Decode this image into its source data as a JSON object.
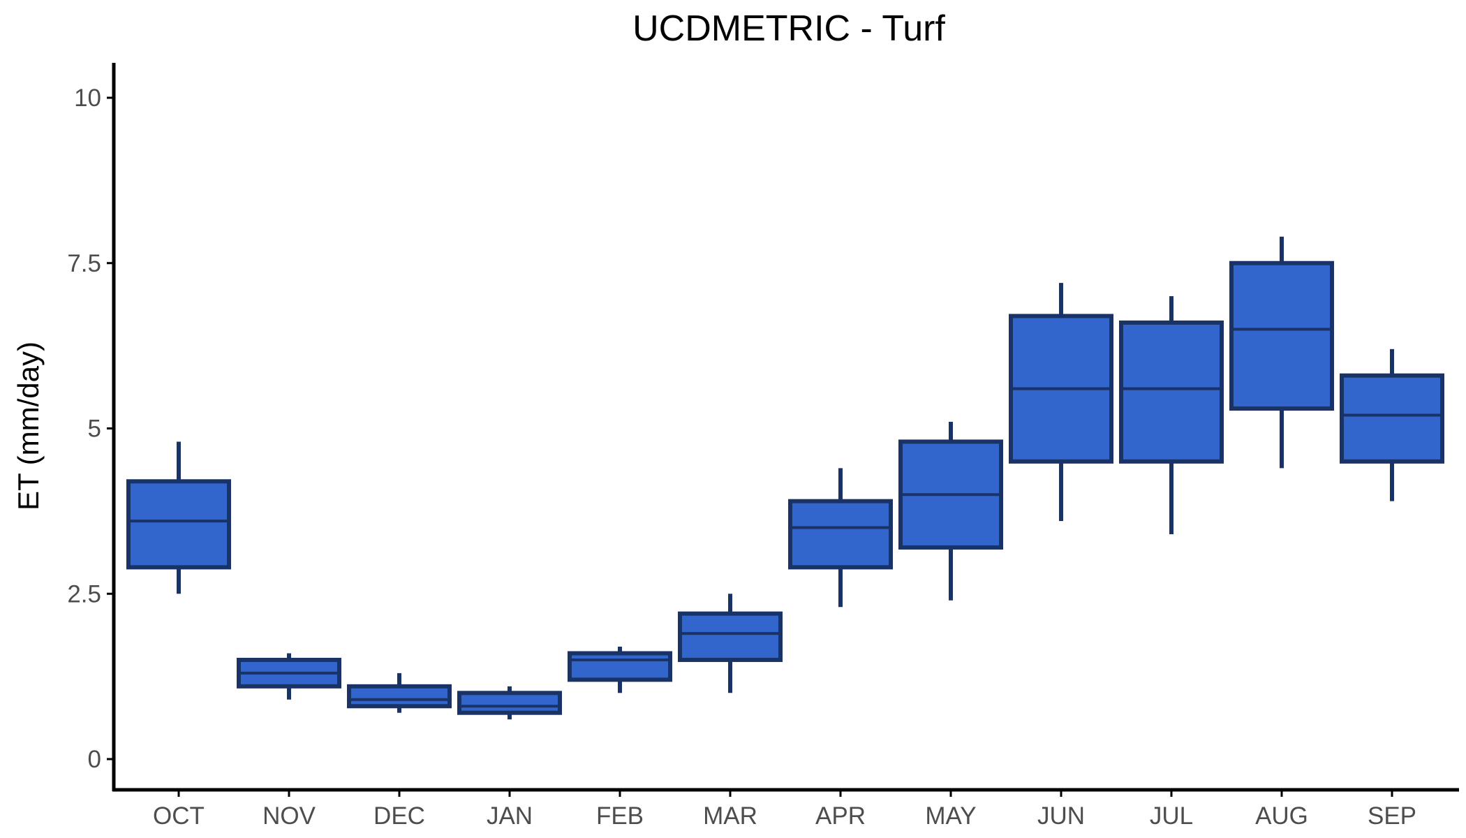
{
  "colors": {
    "box_fill": "#3366cc",
    "box_stroke": "#1a3366",
    "axis": "#000000",
    "tick_label": "#4d4d4d",
    "title": "#000000"
  },
  "chart_data": {
    "type": "box",
    "title": "UCDMETRIC - Turf",
    "xlabel": "",
    "ylabel": "ET (mm/day)",
    "ylim": [
      -0.5,
      10.5
    ],
    "yticks": [
      {
        "value": 0,
        "label": "0"
      },
      {
        "value": 2.5,
        "label": "2.5"
      },
      {
        "value": 5,
        "label": "5"
      },
      {
        "value": 7.5,
        "label": "7.5"
      },
      {
        "value": 10,
        "label": "10"
      }
    ],
    "categories": [
      "OCT",
      "NOV",
      "DEC",
      "JAN",
      "FEB",
      "MAR",
      "APR",
      "MAY",
      "JUN",
      "JUL",
      "AUG",
      "SEP"
    ],
    "boxes": [
      {
        "category": "OCT",
        "min": 2.5,
        "q1": 2.9,
        "median": 3.6,
        "q3": 4.2,
        "max": 4.8
      },
      {
        "category": "NOV",
        "min": 0.9,
        "q1": 1.1,
        "median": 1.3,
        "q3": 1.5,
        "max": 1.6
      },
      {
        "category": "DEC",
        "min": 0.7,
        "q1": 0.8,
        "median": 0.9,
        "q3": 1.1,
        "max": 1.3
      },
      {
        "category": "JAN",
        "min": 0.6,
        "q1": 0.7,
        "median": 0.8,
        "q3": 1.0,
        "max": 1.1
      },
      {
        "category": "FEB",
        "min": 1.0,
        "q1": 1.2,
        "median": 1.5,
        "q3": 1.6,
        "max": 1.7
      },
      {
        "category": "MAR",
        "min": 1.0,
        "q1": 1.5,
        "median": 1.9,
        "q3": 2.2,
        "max": 2.5
      },
      {
        "category": "APR",
        "min": 2.3,
        "q1": 2.9,
        "median": 3.5,
        "q3": 3.9,
        "max": 4.4
      },
      {
        "category": "MAY",
        "min": 2.4,
        "q1": 3.2,
        "median": 4.0,
        "q3": 4.8,
        "max": 5.1
      },
      {
        "category": "JUN",
        "min": 3.6,
        "q1": 4.5,
        "median": 5.6,
        "q3": 6.7,
        "max": 7.2
      },
      {
        "category": "JUL",
        "min": 3.4,
        "q1": 4.5,
        "median": 5.6,
        "q3": 6.6,
        "max": 7.0
      },
      {
        "category": "AUG",
        "min": 4.4,
        "q1": 5.3,
        "median": 6.5,
        "q3": 7.5,
        "max": 7.9
      },
      {
        "category": "SEP",
        "min": 3.9,
        "q1": 4.5,
        "median": 5.2,
        "q3": 5.8,
        "max": 6.2
      }
    ]
  }
}
